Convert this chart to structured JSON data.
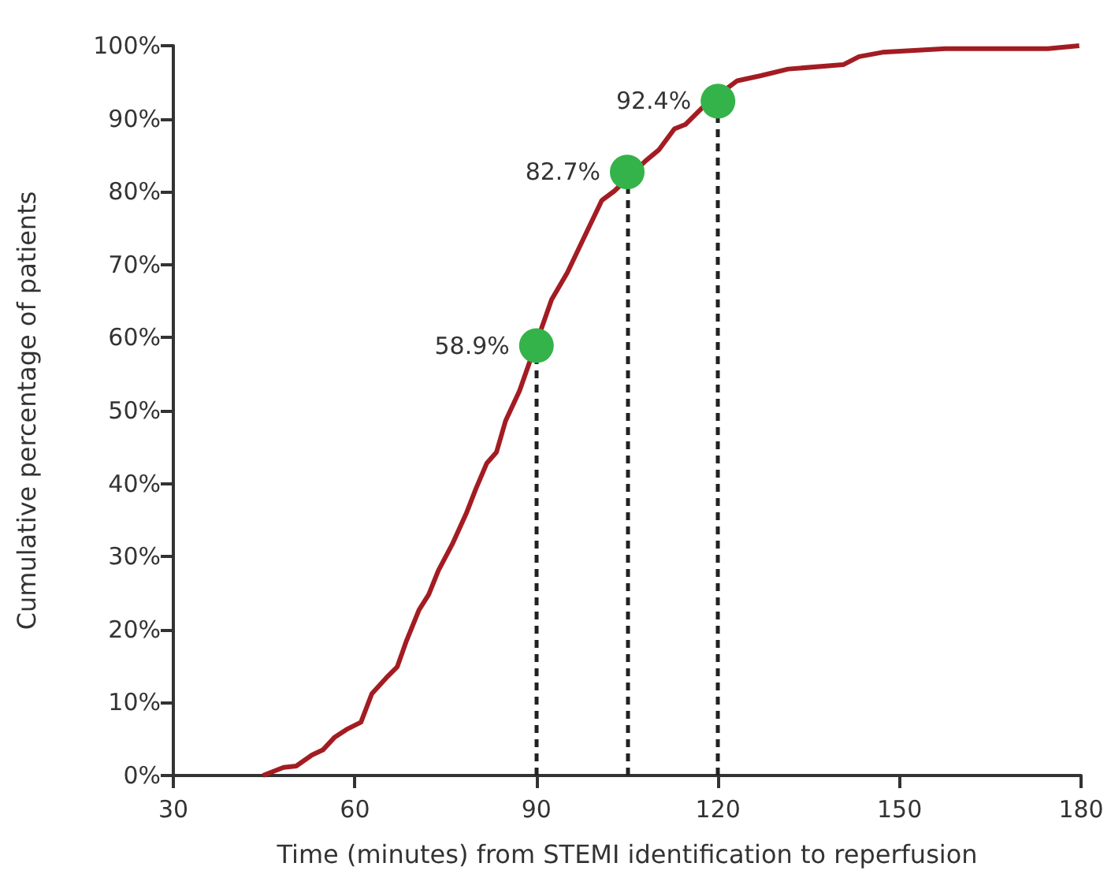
{
  "chart_data": {
    "type": "line",
    "xlabel": "Time (minutes) from STEMI identification to reperfusion",
    "ylabel": "Cumulative percentage of patients",
    "xlim": [
      30,
      180
    ],
    "xticks": [
      30,
      60,
      90,
      120,
      150,
      180
    ],
    "ylim": [
      0,
      100
    ],
    "yticks": [
      {
        "value": 0,
        "label": "0%"
      },
      {
        "value": 10,
        "label": "10%"
      },
      {
        "value": 20,
        "label": "20%"
      },
      {
        "value": 30,
        "label": "30%"
      },
      {
        "value": 40,
        "label": "40%"
      },
      {
        "value": 50,
        "label": "50%"
      },
      {
        "value": 60,
        "label": "60%"
      },
      {
        "value": 70,
        "label": "70%"
      },
      {
        "value": 80,
        "label": "80%"
      },
      {
        "value": 90,
        "label": "90%"
      },
      {
        "value": 100,
        "label": "100%"
      }
    ],
    "series": [
      {
        "color": "#a31c22",
        "marker": "none",
        "line_style": "solid",
        "x": [
          44.8,
          48.2,
          50.3,
          52.9,
          54.7,
          56.6,
          58.6,
          61.0,
          62.8,
          65.2,
          67.0,
          68.5,
          70.6,
          72.2,
          73.8,
          76.1,
          78.4,
          80.0,
          81.8,
          83.4,
          84.9,
          87.2,
          92.5,
          95.1,
          98.2,
          100.8,
          102.9,
          108,
          110.2,
          112.8,
          114.6,
          118,
          123.2,
          127.1,
          131.6,
          140.7,
          143.3,
          147.2,
          157.6,
          174.5,
          179.7
        ],
        "values": [
          0,
          1.1,
          1.3,
          2.8,
          3.5,
          5.2,
          6.3,
          7.3,
          11.2,
          13.4,
          14.9,
          18.4,
          22.7,
          24.8,
          28.1,
          31.7,
          35.9,
          39.3,
          42.8,
          44.3,
          48.6,
          52.7,
          65.2,
          68.9,
          74.3,
          78.8,
          80.1,
          84.2,
          85.7,
          88.6,
          89.2,
          92.0,
          95.2,
          95.9,
          96.8,
          97.4,
          98.5,
          99.1,
          99.6,
          99.6,
          100
        ]
      },
      {
        "type": "scatter",
        "color": "#34b34a",
        "marker": "circle",
        "x": [
          90,
          105,
          120
        ],
        "values": [
          58.9,
          82.7,
          92.4
        ],
        "value_labels": [
          "58.9%",
          "82.7%",
          "92.4%"
        ]
      }
    ]
  }
}
